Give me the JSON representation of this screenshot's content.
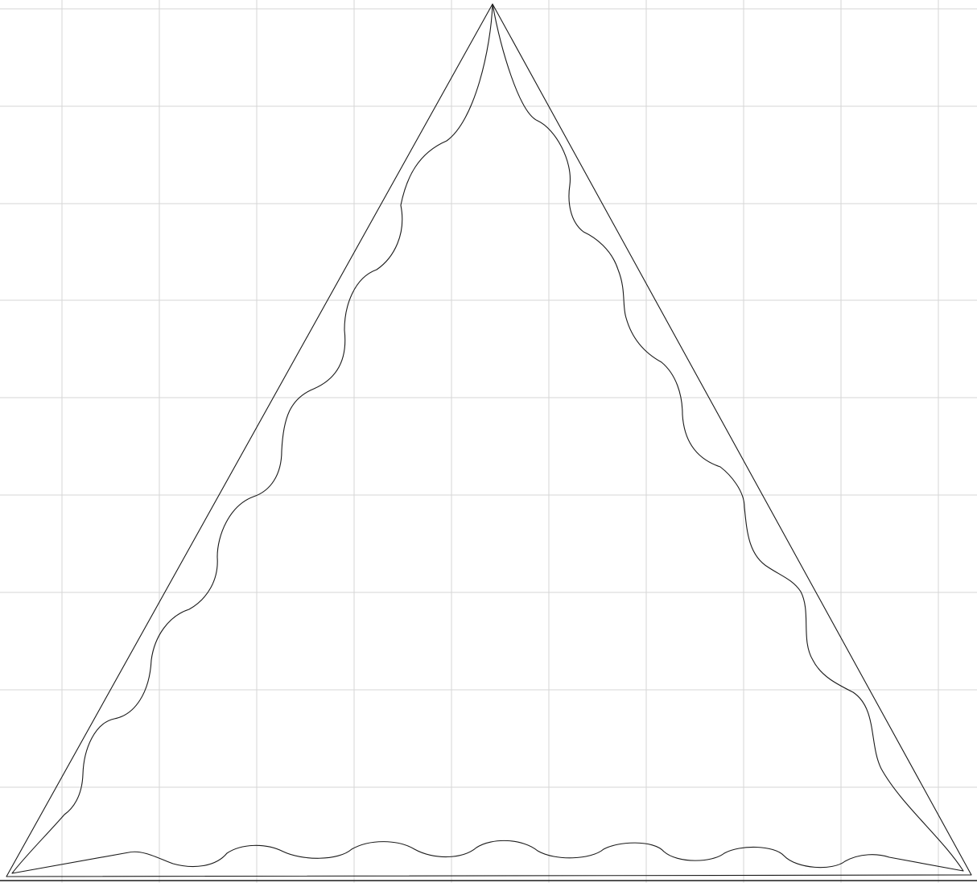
{
  "colors": {
    "background": "#ffffff",
    "grid": "#d6d6d6",
    "stroke": "#1a1a1a"
  },
  "diagram": {
    "grid": true,
    "outer_shape": "triangle",
    "inner_shape": "wavy-triangle"
  }
}
